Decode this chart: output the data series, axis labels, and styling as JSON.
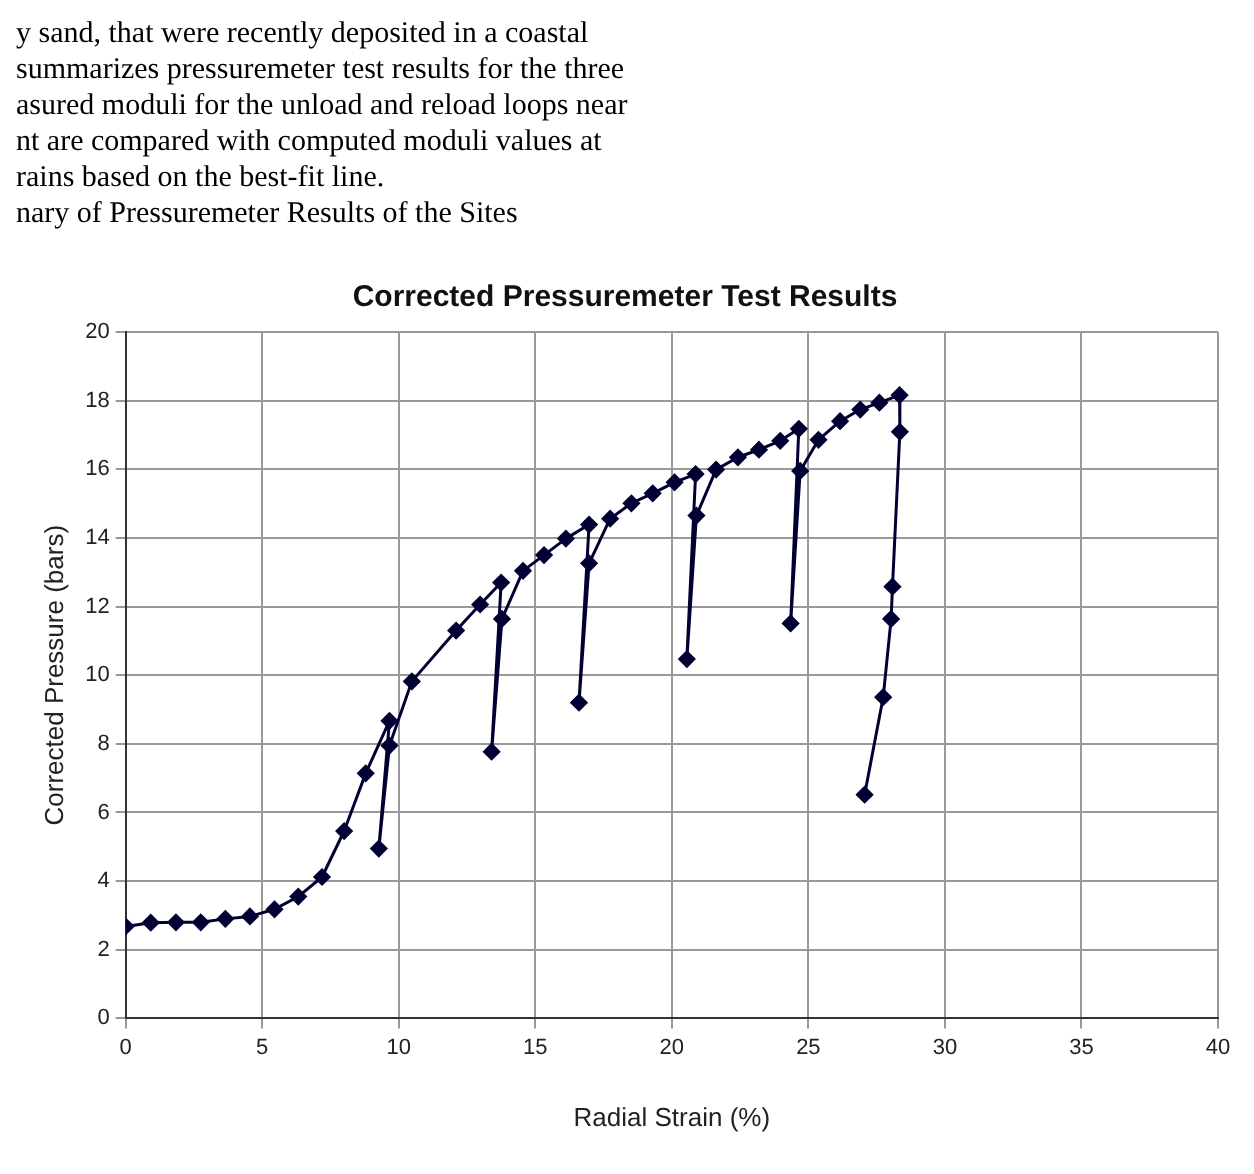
{
  "chart_data": {
    "type": "line",
    "title": "Corrected Pressuremeter Test Results",
    "xlabel": "Radial Strain (%)",
    "ylabel": "Corrected Pressure (bars)",
    "annotations": [
      "y sand, that were recently deposited in a coastal",
      "summarizes pressuremeter test results for the three",
      "asured moduli for the unload and reload loops near",
      "nt are compared with computed moduli values at",
      "rains based on the best-fit line.",
      "nary of Pressuremeter Results of the Sites"
    ],
    "x": [
      0,
      0.92,
      1.84,
      2.75,
      3.65,
      4.55,
      5.45,
      6.32,
      7.19,
      8.0,
      8.79,
      9.66,
      9.27,
      9.66,
      10.48,
      12.1,
      12.98,
      13.75,
      13.4,
      13.78,
      14.55,
      15.32,
      16.12,
      16.97,
      16.6,
      16.97,
      17.74,
      18.52,
      19.3,
      20.1,
      20.87,
      20.55,
      20.9,
      21.62,
      22.42,
      23.19,
      23.97,
      24.65,
      24.35,
      24.7,
      25.37,
      26.16,
      26.9,
      27.6,
      28.34,
      28.35,
      28.08,
      28.03,
      27.74,
      27.06
    ],
    "series": [
      {
        "color": "#000033",
        "values": [
          2.68,
          2.79,
          2.8,
          2.8,
          2.9,
          2.97,
          3.18,
          3.55,
          4.12,
          5.46,
          7.14,
          8.67,
          4.95,
          7.95,
          9.82,
          11.3,
          12.06,
          12.7,
          7.77,
          11.64,
          13.04,
          13.5,
          13.98,
          14.39,
          9.2,
          13.26,
          14.56,
          15.01,
          15.3,
          15.62,
          15.86,
          10.47,
          14.65,
          15.99,
          16.35,
          16.57,
          16.83,
          17.18,
          11.51,
          15.95,
          16.86,
          17.4,
          17.74,
          17.94,
          18.16,
          17.09,
          12.58,
          11.64,
          9.36,
          6.52
        ]
      }
    ],
    "xlim": [
      0,
      40
    ],
    "xticks": [
      0,
      5,
      10,
      15,
      20,
      25,
      30,
      35,
      40
    ],
    "ylim": [
      0,
      20
    ],
    "yticks": [
      0,
      2,
      4,
      6,
      8,
      10,
      12,
      14,
      16,
      18,
      20
    ],
    "grid": true,
    "legend": false,
    "marker": "diamond",
    "line_style": "solid"
  }
}
